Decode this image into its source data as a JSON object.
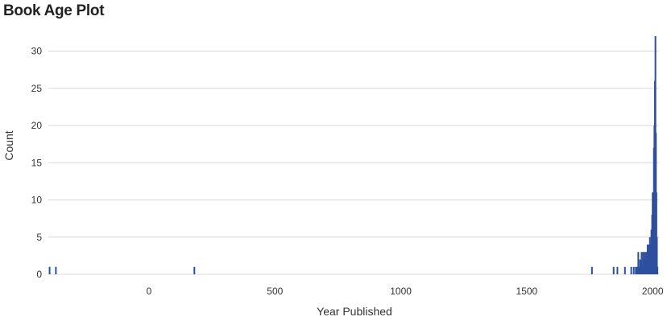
{
  "chart_data": {
    "type": "bar",
    "title": "Book Age Plot",
    "xlabel": "Year Published",
    "ylabel": "Count",
    "xlim": [
      -400,
      2025
    ],
    "ylim": [
      0,
      32
    ],
    "xticks": [
      0,
      500,
      1000,
      1500,
      2000
    ],
    "yticks": [
      0,
      5,
      10,
      15,
      20,
      25,
      30
    ],
    "grid": "horizontal",
    "legend": "none",
    "bar_color": "#2e4f9e",
    "points": [
      {
        "x": -395,
        "y": 1
      },
      {
        "x": -370,
        "y": 1
      },
      {
        "x": 180,
        "y": 1
      },
      {
        "x": 1759,
        "y": 1
      },
      {
        "x": 1845,
        "y": 1
      },
      {
        "x": 1860,
        "y": 1
      },
      {
        "x": 1890,
        "y": 1
      },
      {
        "x": 1915,
        "y": 1
      },
      {
        "x": 1925,
        "y": 1
      },
      {
        "x": 1933,
        "y": 1
      },
      {
        "x": 1938,
        "y": 1
      },
      {
        "x": 1943,
        "y": 3
      },
      {
        "x": 1946,
        "y": 1
      },
      {
        "x": 1950,
        "y": 2
      },
      {
        "x": 1953,
        "y": 2
      },
      {
        "x": 1956,
        "y": 3
      },
      {
        "x": 1959,
        "y": 1
      },
      {
        "x": 1962,
        "y": 3
      },
      {
        "x": 1965,
        "y": 2
      },
      {
        "x": 1968,
        "y": 3
      },
      {
        "x": 1971,
        "y": 2
      },
      {
        "x": 1974,
        "y": 3
      },
      {
        "x": 1977,
        "y": 3
      },
      {
        "x": 1980,
        "y": 4
      },
      {
        "x": 1983,
        "y": 3
      },
      {
        "x": 1986,
        "y": 4
      },
      {
        "x": 1989,
        "y": 5
      },
      {
        "x": 1992,
        "y": 4
      },
      {
        "x": 1995,
        "y": 6
      },
      {
        "x": 1998,
        "y": 8
      },
      {
        "x": 2000,
        "y": 11
      },
      {
        "x": 2003,
        "y": 10
      },
      {
        "x": 2005,
        "y": 17
      },
      {
        "x": 2007,
        "y": 20
      },
      {
        "x": 2009,
        "y": 26
      },
      {
        "x": 2011,
        "y": 32
      },
      {
        "x": 2013,
        "y": 19
      },
      {
        "x": 2015,
        "y": 11
      },
      {
        "x": 2017,
        "y": 5
      },
      {
        "x": 2019,
        "y": 1
      }
    ]
  }
}
